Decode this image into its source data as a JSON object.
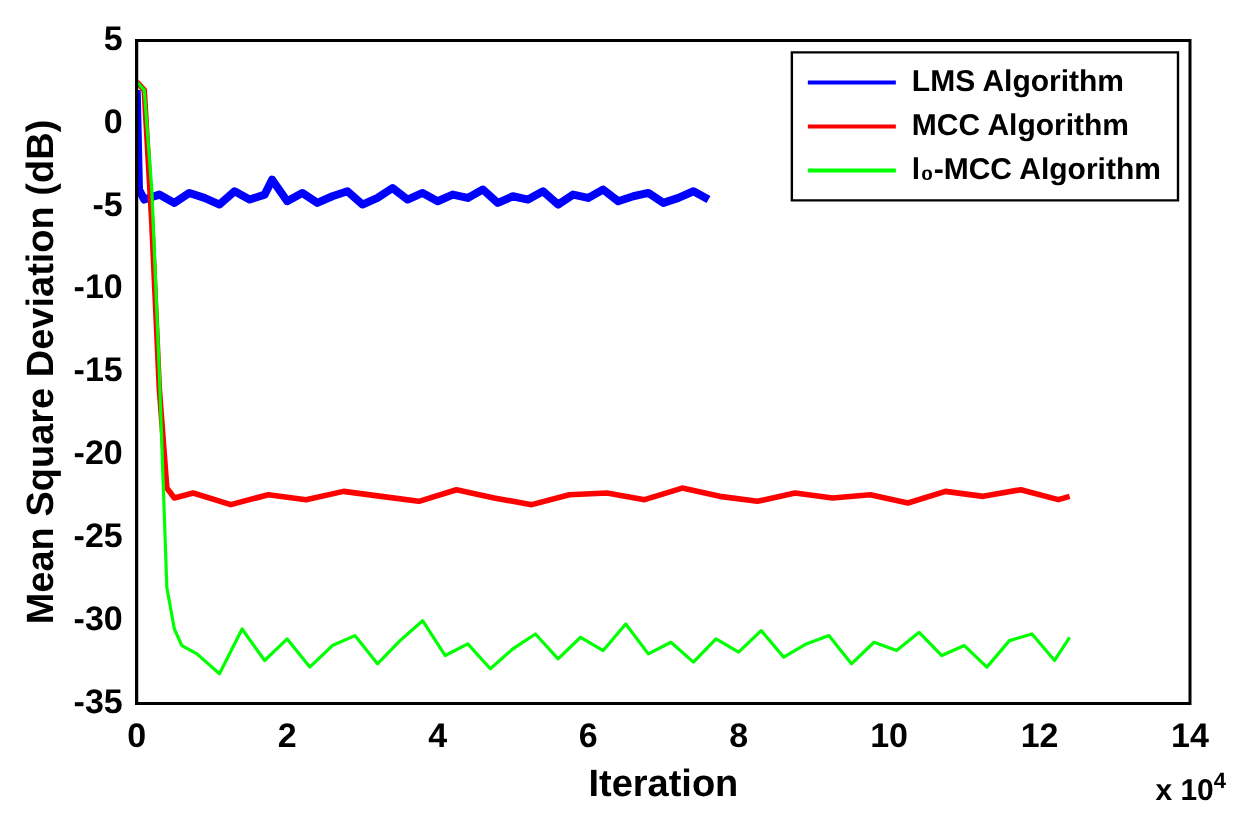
{
  "chart_data": {
    "type": "line",
    "xlabel": "Iteration",
    "ylabel": "Mean Square Deviation (dB)",
    "annotations": [
      "x 10$^{4}$"
    ],
    "xlim": [
      0,
      14
    ],
    "xticks": [
      0,
      2,
      4,
      6,
      8,
      10,
      12,
      14
    ],
    "ylim": [
      -35,
      5
    ],
    "yticks": [
      -35,
      -30,
      -25,
      -20,
      -15,
      -10,
      -5,
      0,
      5
    ],
    "grid": false,
    "legend": "top right",
    "marker": "none",
    "line_style": "solid",
    "series": [
      {
        "name": "LMS Algorithm",
        "color": "#0000ff",
        "x": [
          0,
          0.03,
          0.1,
          0.3,
          0.5,
          0.7,
          0.9,
          1.1,
          1.3,
          1.5,
          1.7,
          1.8,
          2.0,
          2.2,
          2.4,
          2.6,
          2.8,
          3.0,
          3.2,
          3.4,
          3.6,
          3.8,
          4.0,
          4.2,
          4.4,
          4.6,
          4.8,
          5.0,
          5.2,
          5.4,
          5.6,
          5.8,
          6.0,
          6.2,
          6.4,
          6.6,
          6.8,
          7.0,
          7.2,
          7.4,
          7.6
        ],
        "values": [
          2,
          -4,
          -4.6,
          -4.3,
          -4.8,
          -4.2,
          -4.5,
          -4.9,
          -4.1,
          -4.6,
          -4.3,
          -3.4,
          -4.7,
          -4.2,
          -4.8,
          -4.4,
          -4.1,
          -4.9,
          -4.5,
          -3.9,
          -4.6,
          -4.2,
          -4.7,
          -4.3,
          -4.5,
          -4.0,
          -4.8,
          -4.4,
          -4.6,
          -4.1,
          -4.9,
          -4.3,
          -4.5,
          -4.0,
          -4.7,
          -4.4,
          -4.2,
          -4.8,
          -4.5,
          -4.1,
          -4.6
        ]
      },
      {
        "name": "MCC Algorithm",
        "color": "#ff0000",
        "x": [
          0,
          0.1,
          0.2,
          0.3,
          0.4,
          0.5,
          0.75,
          1.25,
          1.75,
          2.25,
          2.75,
          3.25,
          3.75,
          4.25,
          4.75,
          5.25,
          5.75,
          6.25,
          6.75,
          7.25,
          7.75,
          8.25,
          8.75,
          9.25,
          9.75,
          10.25,
          10.75,
          11.25,
          11.75,
          12.25,
          12.4
        ],
        "values": [
          2.5,
          2,
          -6,
          -16,
          -22,
          -22.6,
          -22.3,
          -23.0,
          -22.4,
          -22.7,
          -22.2,
          -22.5,
          -22.8,
          -22.1,
          -22.6,
          -23.0,
          -22.4,
          -22.3,
          -22.7,
          -22.0,
          -22.5,
          -22.8,
          -22.3,
          -22.6,
          -22.4,
          -22.9,
          -22.2,
          -22.5,
          -22.1,
          -22.7,
          -22.5
        ]
      },
      {
        "name": "l₀-MCC Algorithm",
        "color": "#00ff00",
        "x": [
          0,
          0.1,
          0.2,
          0.3,
          0.4,
          0.5,
          0.6,
          0.8,
          1.1,
          1.4,
          1.7,
          2.0,
          2.3,
          2.6,
          2.9,
          3.2,
          3.5,
          3.8,
          4.1,
          4.4,
          4.7,
          5.0,
          5.3,
          5.6,
          5.9,
          6.2,
          6.5,
          6.8,
          7.1,
          7.4,
          7.7,
          8.0,
          8.3,
          8.6,
          8.9,
          9.2,
          9.5,
          9.8,
          10.1,
          10.4,
          10.7,
          11.0,
          11.3,
          11.6,
          11.9,
          12.2,
          12.4
        ],
        "values": [
          2.5,
          2,
          -4,
          -15,
          -28,
          -30.5,
          -31.5,
          -32.0,
          -33.2,
          -30.5,
          -32.4,
          -31.1,
          -32.8,
          -31.5,
          -30.9,
          -32.6,
          -31.2,
          -30.0,
          -32.1,
          -31.4,
          -32.9,
          -31.7,
          -30.8,
          -32.3,
          -31.0,
          -31.8,
          -30.2,
          -32.0,
          -31.3,
          -32.5,
          -31.1,
          -31.9,
          -30.6,
          -32.2,
          -31.4,
          -30.9,
          -32.6,
          -31.3,
          -31.8,
          -30.7,
          -32.1,
          -31.5,
          -32.8,
          -31.2,
          -30.8,
          -32.4,
          -31.0
        ]
      }
    ]
  }
}
